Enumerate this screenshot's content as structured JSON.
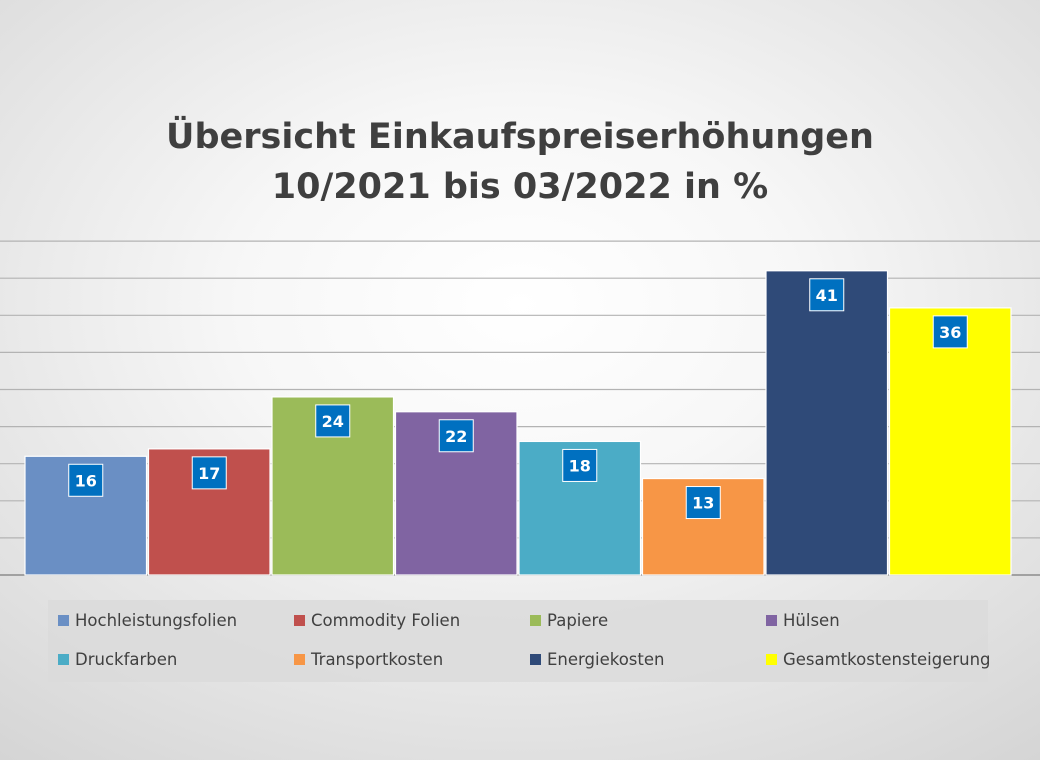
{
  "chart_data": {
    "type": "bar",
    "title": "Übersicht Einkaufspreiserhöhungen\n10/2021 bis 03/2022 in %",
    "title_lines": [
      "Übersicht Einkaufspreiserhöhungen",
      "10/2021 bis 03/2022 in %"
    ],
    "categories": [
      "Hochleistungsfolien",
      "Commodity Folien",
      "Papiere",
      "Hülsen",
      "Druckfarben",
      "Transportkosten",
      "Energiekosten",
      "Gesamtkostensteigerung"
    ],
    "values": [
      16,
      17,
      24,
      22,
      18,
      13,
      41,
      36
    ],
    "colors": [
      "#6a8fc4",
      "#c0504d",
      "#9bbb59",
      "#8064a2",
      "#4bacc6",
      "#f79646",
      "#2f4a78",
      "#ffff00"
    ],
    "data_label_color": "#0070c0",
    "xlabel": "",
    "ylabel": "",
    "ylim": [
      0,
      45
    ],
    "gridlines": true,
    "gridline_step": 5,
    "legend_position": "bottom"
  }
}
